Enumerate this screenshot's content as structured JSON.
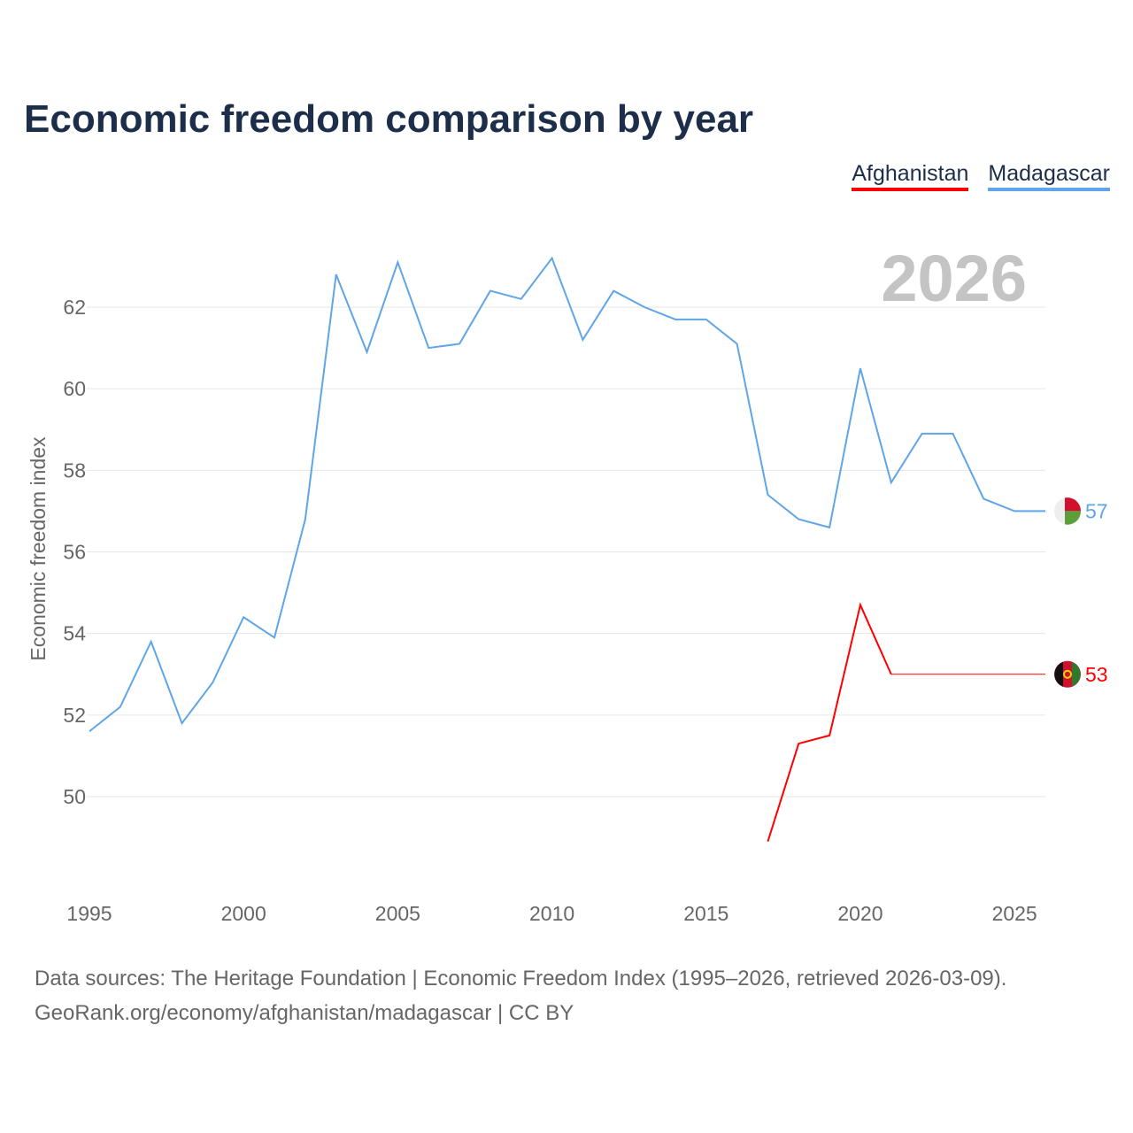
{
  "title": "Economic freedom comparison by year",
  "legend": [
    {
      "name": "Afghanistan",
      "color": "#ff0000"
    },
    {
      "name": "Madagascar",
      "color": "#5fa5e8"
    }
  ],
  "year_watermark": "2026",
  "sources": {
    "line1": "Data sources: The Heritage Foundation | Economic Freedom Index (1995–2026, retrieved 2026-03-09).",
    "line2": "GeoRank.org/economy/afghanistan/madagascar | CC BY"
  },
  "chart_data": {
    "type": "line",
    "title": "Economic freedom comparison by year",
    "xlabel": "",
    "ylabel": "Economic freedom index",
    "xlim": [
      1995,
      2026
    ],
    "ylim": [
      48,
      63.6
    ],
    "xticks": [
      1995,
      2000,
      2005,
      2010,
      2015,
      2020,
      2025
    ],
    "yticks": [
      50,
      52,
      54,
      56,
      58,
      60,
      62
    ],
    "grid": true,
    "legend_position": "top-right",
    "x": [
      1995,
      1996,
      1997,
      1998,
      1999,
      2000,
      2001,
      2002,
      2003,
      2004,
      2005,
      2006,
      2007,
      2008,
      2009,
      2010,
      2011,
      2012,
      2013,
      2014,
      2015,
      2016,
      2017,
      2018,
      2019,
      2020,
      2021,
      2022,
      2023,
      2024,
      2025,
      2026
    ],
    "series": [
      {
        "name": "Madagascar",
        "color": "#5fa5e8",
        "end_label": "57",
        "values": [
          51.6,
          52.2,
          53.8,
          51.8,
          52.8,
          54.4,
          53.9,
          56.8,
          62.8,
          60.9,
          63.1,
          61.0,
          61.1,
          62.4,
          62.2,
          63.2,
          61.2,
          62.4,
          62.0,
          61.7,
          61.7,
          61.1,
          57.4,
          56.8,
          56.6,
          60.5,
          57.7,
          58.9,
          58.9,
          57.3,
          57.0,
          57.0
        ]
      },
      {
        "name": "Afghanistan",
        "color": "#ff0000",
        "end_label": "53",
        "values": [
          null,
          null,
          null,
          null,
          null,
          null,
          null,
          null,
          null,
          null,
          null,
          null,
          null,
          null,
          null,
          null,
          null,
          null,
          null,
          null,
          null,
          null,
          48.9,
          51.3,
          51.5,
          54.7,
          53.0,
          null,
          null,
          null,
          null,
          53.0
        ]
      }
    ]
  }
}
